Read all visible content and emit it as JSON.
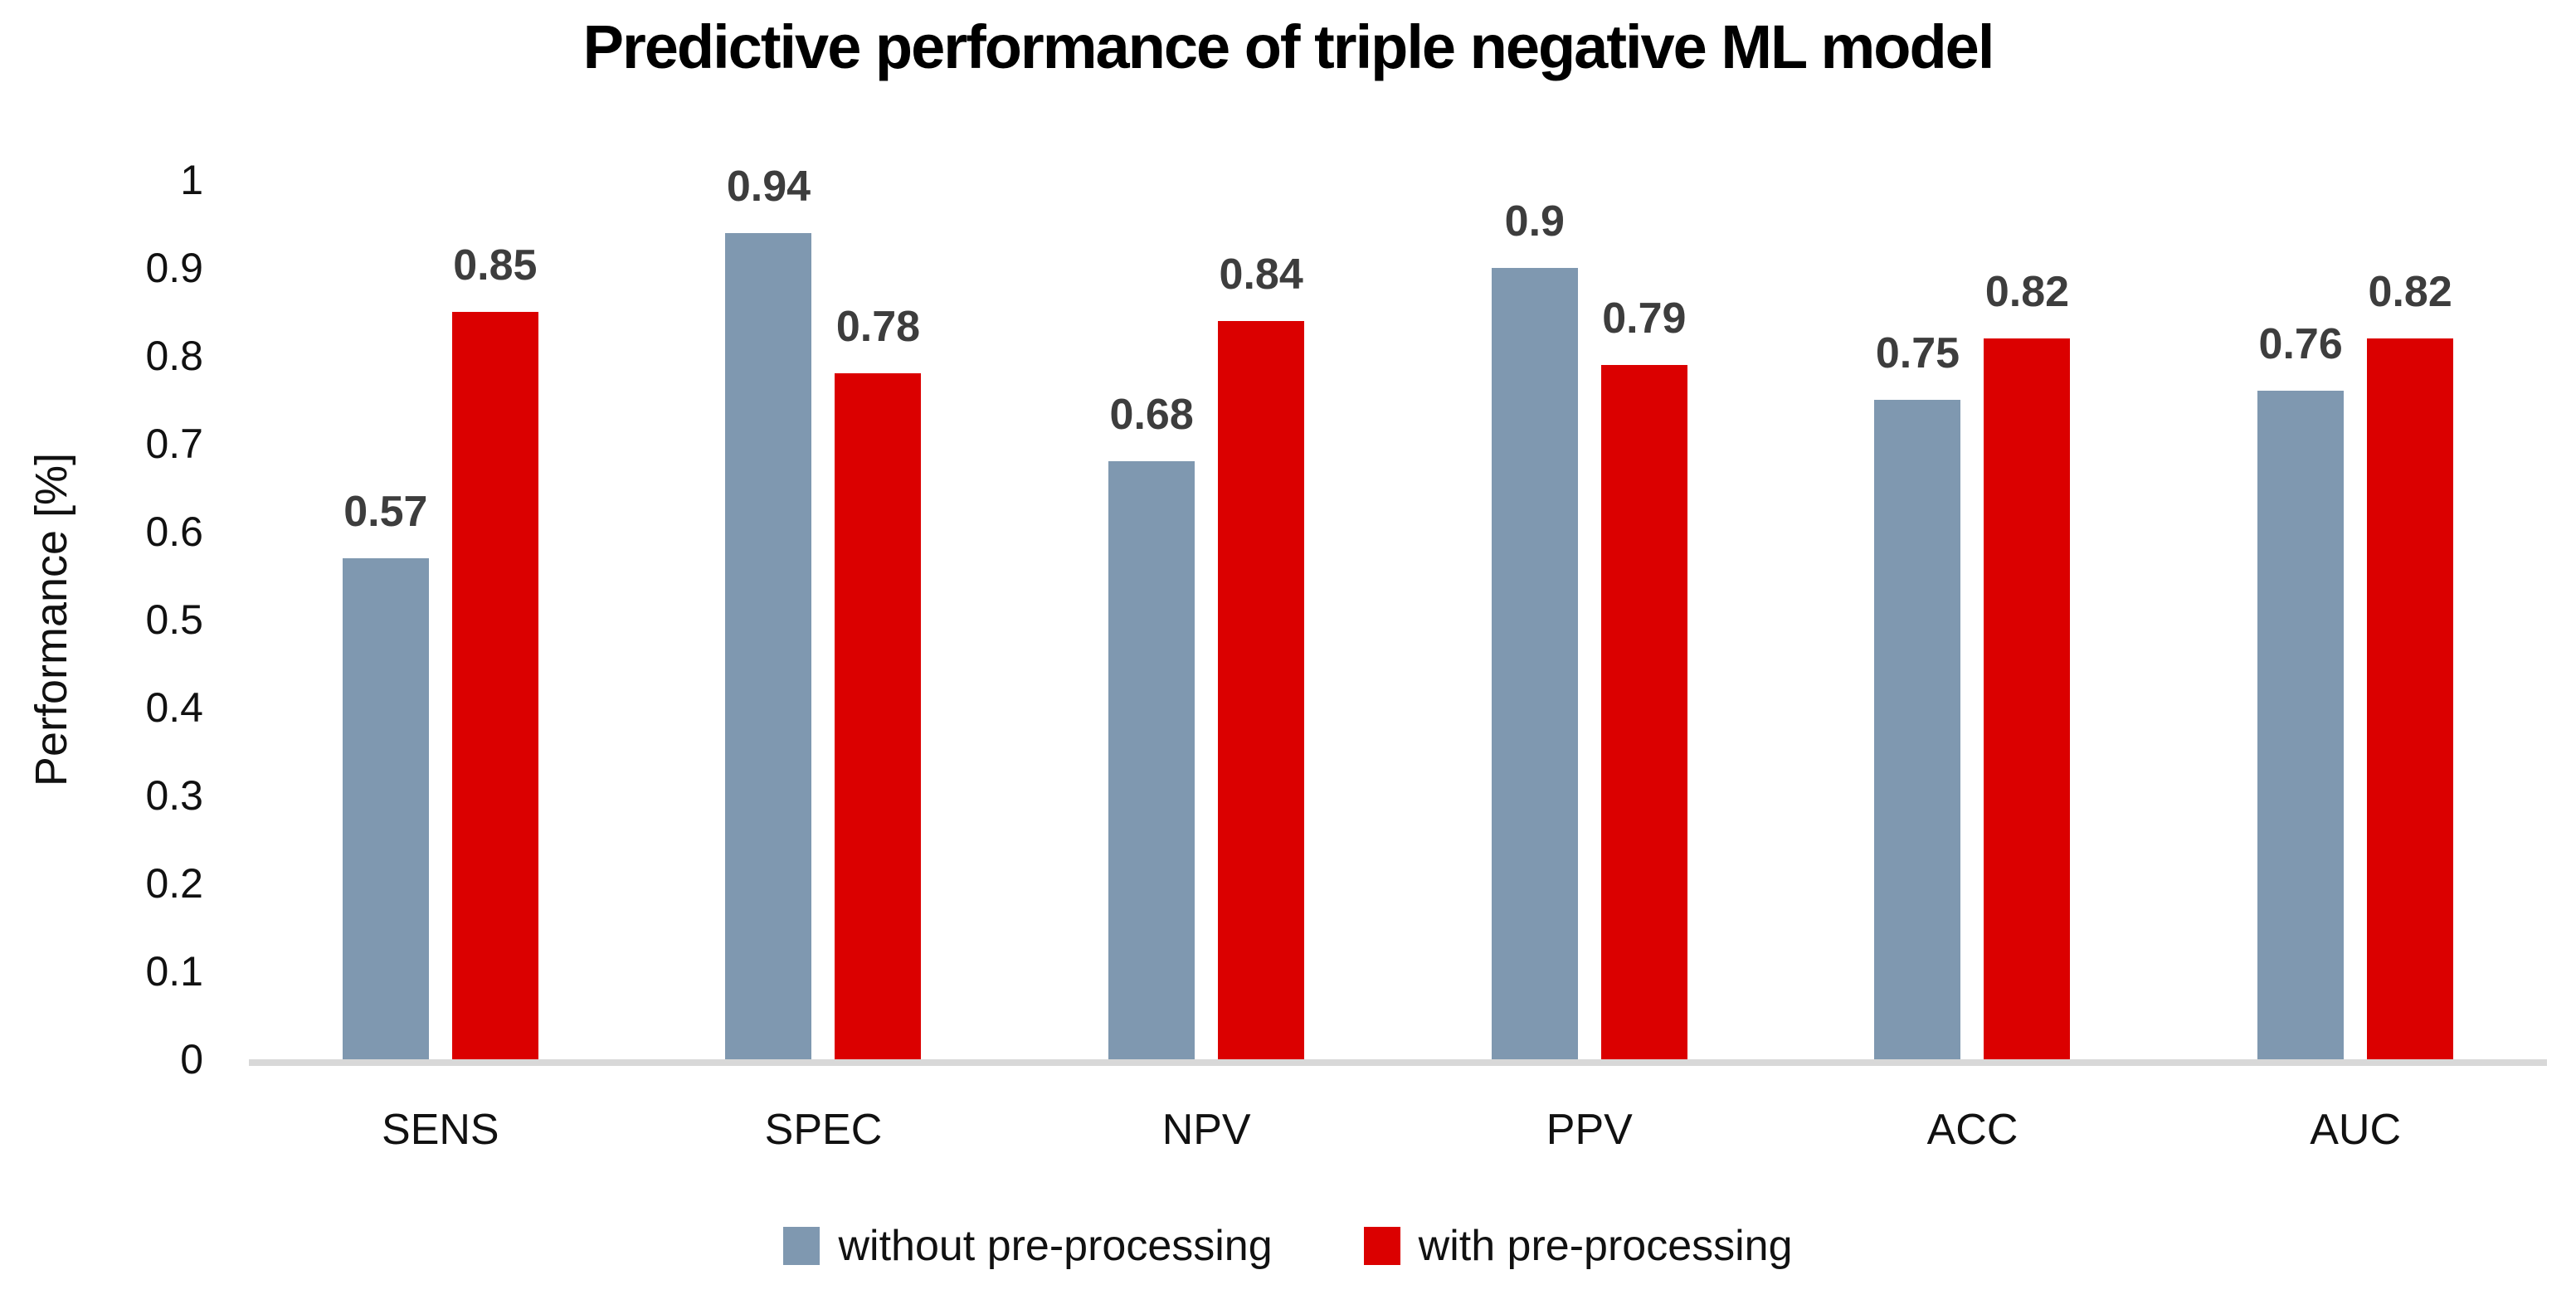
{
  "chart_data": {
    "type": "bar",
    "title": "Predictive performance of triple negative ML model",
    "xlabel": "",
    "ylabel": "Performance [%]",
    "categories": [
      "SENS",
      "SPEC",
      "NPV",
      "PPV",
      "ACC",
      "AUC"
    ],
    "series": [
      {
        "name": "without pre-processing",
        "color": "#7f98b0",
        "values": [
          0.57,
          0.94,
          0.68,
          0.9,
          0.75,
          0.76
        ]
      },
      {
        "name": "with pre-processing",
        "color": "#db0000",
        "values": [
          0.85,
          0.78,
          0.84,
          0.79,
          0.82,
          0.82
        ]
      }
    ],
    "y_ticks": [
      "1",
      "0.9",
      "0.8",
      "0.7",
      "0.6",
      "0.5",
      "0.4",
      "0.3",
      "0.2",
      "0.1",
      "0"
    ],
    "ylim": [
      0,
      1
    ],
    "grid": false,
    "axis_line_color": "#d8d8d8",
    "legend_position": "bottom"
  }
}
